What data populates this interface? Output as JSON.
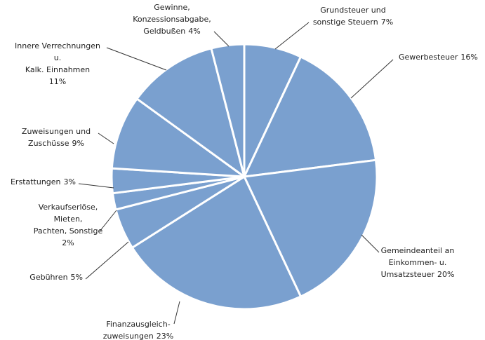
{
  "chart_data": {
    "type": "pie",
    "categories": [
      "Grundsteuer und\nsonstige Steuern",
      "Gewerbesteuer",
      "Gemeindeanteil an\nEinkommen- u.\nUmsatzsteuer",
      "Finanzausgleich-\nzuweisungen",
      "Gebühren",
      "Verkaufserlöse,\nMieten,\nPachten, Sonstige",
      "Erstattungen",
      "Zuweisungen und\nZuschüsse",
      "Innere Verrechnungen\nu.\nKalk. Einnahmen",
      "Gewinne,\nKonzessionsabgabe,\nGeldbußen"
    ],
    "values": [
      7,
      16,
      20,
      23,
      5,
      2,
      3,
      9,
      11,
      4
    ],
    "value_labels": [
      "7%",
      "16%",
      "20%",
      "23%",
      "5%",
      "2%",
      "3%",
      "9%",
      "11%",
      "4%"
    ],
    "color": "#7aa0cf"
  }
}
